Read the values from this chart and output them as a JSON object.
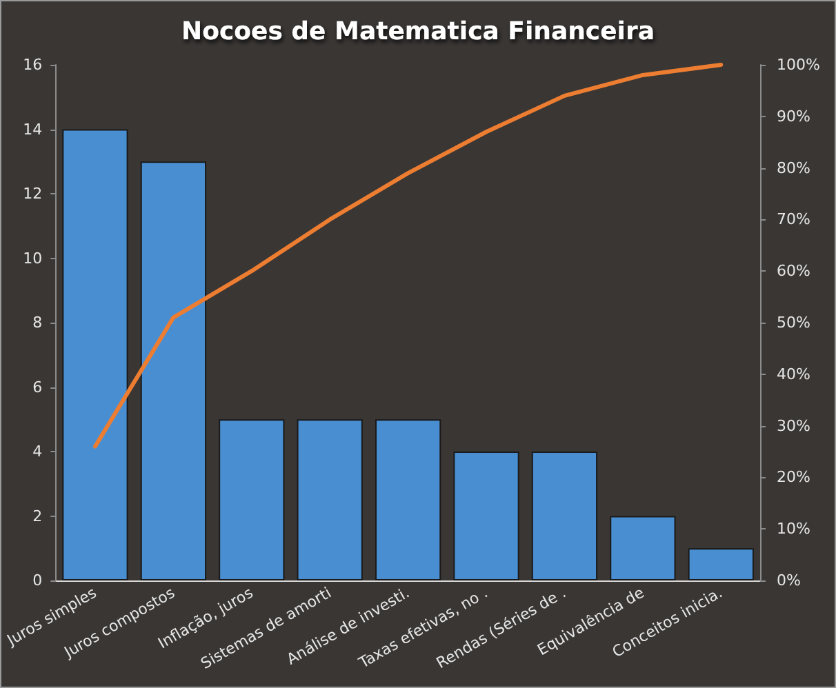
{
  "chart_data": {
    "type": "bar",
    "title": "Nocoes de Matematica Financeira",
    "categories": [
      "Juros simples",
      "Juros compostos",
      "Inflação, juros",
      "Sistemas de amorti",
      "Análise de investi.",
      "Taxas efetivas, no .",
      "Rendas (Séries de .",
      "Equivalência de",
      "Conceitos inicia."
    ],
    "series": [
      {
        "color": "#4a8ed2",
        "values": [
          14,
          13,
          5,
          5,
          5,
          4,
          4,
          2,
          1
        ]
      },
      {
        "type": "line",
        "axis": "y2",
        "color": "#ed7d31",
        "values": [
          26,
          51,
          60,
          70,
          79,
          87,
          94,
          98,
          100
        ]
      }
    ],
    "ylim": [
      0,
      16
    ],
    "yticks": [
      0,
      2,
      4,
      6,
      8,
      10,
      12,
      14,
      16
    ],
    "y2lim": [
      0,
      100
    ],
    "y2ticks": [
      {
        "value": 0,
        "label": "0%"
      },
      {
        "value": 10,
        "label": "10%"
      },
      {
        "value": 20,
        "label": "20%"
      },
      {
        "value": 30,
        "label": "30%"
      },
      {
        "value": 40,
        "label": "40%"
      },
      {
        "value": 50,
        "label": "50%"
      },
      {
        "value": 60,
        "label": "60%"
      },
      {
        "value": 70,
        "label": "70%"
      },
      {
        "value": 80,
        "label": "80%"
      },
      {
        "value": 90,
        "label": "90%"
      },
      {
        "value": 100,
        "label": "100%"
      }
    ],
    "grid": false,
    "marker": "none",
    "line_style": "solid"
  }
}
